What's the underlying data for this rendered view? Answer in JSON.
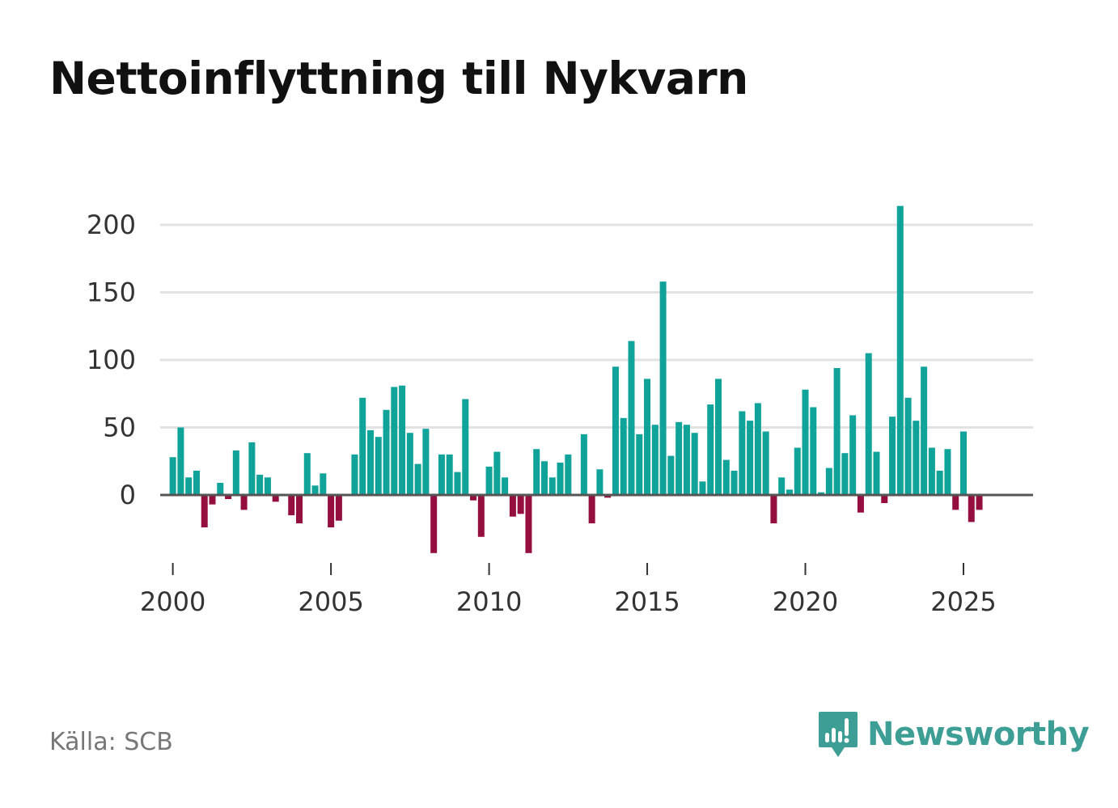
{
  "title": "Nettoinflyttning till Nykvarn",
  "source": "Källa: SCB",
  "brand": "Newsworthy",
  "colors": {
    "positive": "#0fa39a",
    "negative": "#940f3f",
    "grid": "#e2e2e2",
    "zero": "#555555",
    "brand": "#3c9e94"
  },
  "chart_data": {
    "type": "bar",
    "title": "Nettoinflyttning till Nykvarn",
    "xlabel": "",
    "ylabel": "",
    "ylim": [
      -50,
      225
    ],
    "xlim": [
      1999.6,
      2027.2
    ],
    "yticks": [
      0,
      50,
      100,
      150,
      200
    ],
    "xticks": [
      2000,
      2005,
      2010,
      2015,
      2020,
      2025
    ],
    "period": "quarterly",
    "x": [
      2000.0,
      2000.25,
      2000.5,
      2000.75,
      2001.0,
      2001.25,
      2001.5,
      2001.75,
      2002.0,
      2002.25,
      2002.5,
      2002.75,
      2003.0,
      2003.25,
      2003.5,
      2003.75,
      2004.0,
      2004.25,
      2004.5,
      2004.75,
      2005.0,
      2005.25,
      2005.5,
      2005.75,
      2006.0,
      2006.25,
      2006.5,
      2006.75,
      2007.0,
      2007.25,
      2007.5,
      2007.75,
      2008.0,
      2008.25,
      2008.5,
      2008.75,
      2009.0,
      2009.25,
      2009.5,
      2009.75,
      2010.0,
      2010.25,
      2010.5,
      2010.75,
      2011.0,
      2011.25,
      2011.5,
      2011.75,
      2012.0,
      2012.25,
      2012.5,
      2012.75,
      2013.0,
      2013.25,
      2013.5,
      2013.75,
      2014.0,
      2014.25,
      2014.5,
      2014.75,
      2015.0,
      2015.25,
      2015.5,
      2015.75,
      2016.0,
      2016.25,
      2016.5,
      2016.75,
      2017.0,
      2017.25,
      2017.5,
      2017.75,
      2018.0,
      2018.25,
      2018.5,
      2018.75,
      2019.0,
      2019.25,
      2019.5,
      2019.75,
      2020.0,
      2020.25,
      2020.5,
      2020.75,
      2021.0,
      2021.25,
      2021.5,
      2021.75,
      2022.0,
      2022.25,
      2022.5,
      2022.75,
      2023.0,
      2023.25,
      2023.5,
      2023.75,
      2024.0,
      2024.25,
      2024.5,
      2024.75,
      2025.0,
      2025.25,
      2025.5,
      2025.75
    ],
    "values": [
      28,
      50,
      13,
      18,
      -24,
      -7,
      9,
      -3,
      33,
      -11,
      39,
      15,
      13,
      -5,
      0,
      -15,
      -21,
      31,
      7,
      16,
      -24,
      -19,
      0,
      30,
      72,
      48,
      43,
      63,
      80,
      81,
      46,
      23,
      49,
      -43,
      30,
      30,
      17,
      71,
      -4,
      -31,
      21,
      32,
      13,
      -16,
      -14,
      -43,
      34,
      25,
      13,
      24,
      30,
      0,
      45,
      -21,
      19,
      -2,
      95,
      57,
      114,
      45,
      86,
      52,
      158,
      29,
      54,
      52,
      46,
      10,
      67,
      86,
      26,
      18,
      62,
      55,
      68,
      47,
      -21,
      13,
      4,
      35,
      78,
      65,
      2,
      20,
      94,
      31,
      59,
      -13,
      105,
      32,
      -6,
      58,
      214,
      72,
      55,
      95,
      35,
      18,
      34,
      -11,
      47,
      -20,
      -11,
      0
    ]
  }
}
